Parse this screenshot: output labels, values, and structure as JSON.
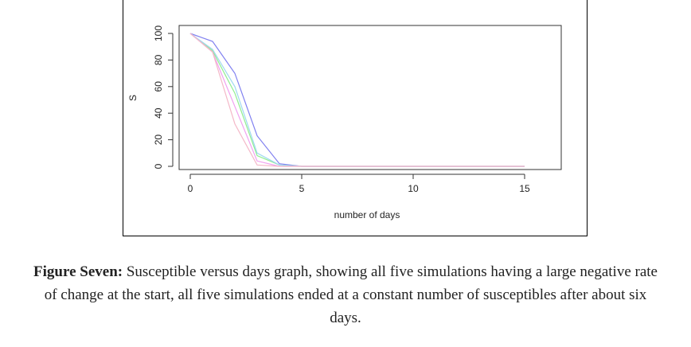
{
  "chart_data": {
    "type": "line",
    "title": "",
    "xlabel": "number of days",
    "ylabel": "S",
    "xlim": [
      0,
      15
    ],
    "ylim": [
      0,
      100
    ],
    "x_ticks": [
      "0",
      "5",
      "10",
      "15"
    ],
    "y_ticks": [
      "0",
      "20",
      "40",
      "60",
      "80",
      "100"
    ],
    "grid": false,
    "series": [
      {
        "color": "#8080f0",
        "x": [
          0,
          1,
          2,
          3,
          4,
          5,
          6,
          7,
          8,
          9,
          10,
          11,
          12,
          13,
          14,
          15
        ],
        "y": [
          100,
          94,
          70,
          23,
          2,
          0,
          0,
          0,
          0,
          0,
          0,
          0,
          0,
          0,
          0,
          0
        ]
      },
      {
        "color": "#90ee90",
        "x": [
          0,
          1,
          2,
          3,
          4,
          5,
          6,
          7,
          8,
          9,
          10,
          11,
          12,
          13,
          14,
          15
        ],
        "y": [
          100,
          87,
          55,
          8,
          1,
          0,
          0,
          0,
          0,
          0,
          0,
          0,
          0,
          0,
          0,
          0
        ]
      },
      {
        "color": "#a0d8f0",
        "x": [
          0,
          1,
          2,
          3,
          4,
          5,
          6,
          7,
          8,
          9,
          10,
          11,
          12,
          13,
          14,
          15
        ],
        "y": [
          100,
          88,
          60,
          10,
          1,
          0,
          0,
          0,
          0,
          0,
          0,
          0,
          0,
          0,
          0,
          0
        ]
      },
      {
        "color": "#f0a0f0",
        "x": [
          0,
          1,
          2,
          3,
          4,
          5,
          6,
          7,
          8,
          9,
          10,
          11,
          12,
          13,
          14,
          15
        ],
        "y": [
          100,
          86,
          45,
          4,
          0,
          0,
          0,
          0,
          0,
          0,
          0,
          0,
          0,
          0,
          0,
          0
        ]
      },
      {
        "color": "#f4b8c8",
        "x": [
          0,
          1,
          2,
          3,
          4,
          5,
          6,
          7,
          8,
          9,
          10,
          11,
          12,
          13,
          14,
          15
        ],
        "y": [
          100,
          86,
          32,
          1,
          0,
          0,
          0,
          0,
          0,
          0,
          0,
          0,
          0,
          0,
          0,
          0
        ]
      }
    ]
  },
  "caption": {
    "label": "Figure Seven:",
    "text": " Susceptible versus days graph, showing all five simulations having a large negative rate of change at the start, all five simulations ended at a constant number of susceptibles after about six days."
  }
}
